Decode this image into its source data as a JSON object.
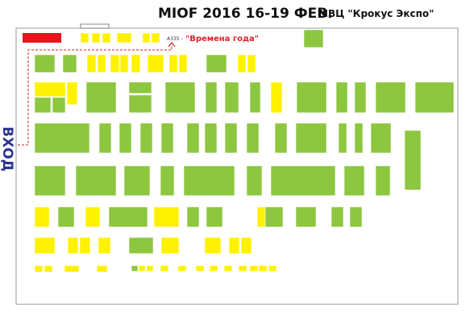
{
  "header": {
    "title": "MIOF 2016 16-19 ФЕВ.",
    "venue": "МВЦ \"Крокус  Экспо\""
  },
  "booth_label": {
    "code": "A335 -",
    "name": "\"Времена года\""
  },
  "entrance": "ВХОД"
}
